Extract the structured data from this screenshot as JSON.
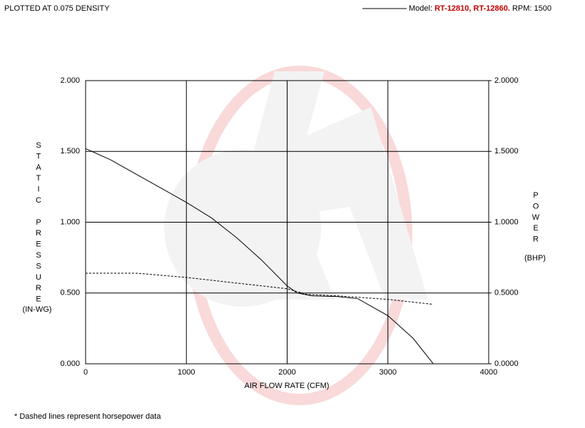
{
  "chart_data": {
    "type": "line",
    "note_top": "PLOTTED AT 0.075 DENSITY",
    "legend": {
      "label": "Model:",
      "models": "RT-12810, RT-12860.",
      "rpm": "RPM: 1500"
    },
    "xlabel": "AIR FLOW RATE (CFM)",
    "ylabel": "STATIC PRESSURE",
    "yunit": "(IN-WG)",
    "y2label": "POWER",
    "y2unit": "(BHP)",
    "footnote": "* Dashed lines represent horsepower data",
    "xlim": [
      0,
      4000
    ],
    "xticks": [
      0,
      1000,
      2000,
      3000,
      4000
    ],
    "ylim": [
      0,
      2
    ],
    "yticks": [
      {
        "value": 0,
        "label": "0.000"
      },
      {
        "value": 0.5,
        "label": "0.500"
      },
      {
        "value": 1,
        "label": "1.000"
      },
      {
        "value": 1.5,
        "label": "1.500"
      },
      {
        "value": 2,
        "label": "2.000"
      }
    ],
    "y2lim": [
      0,
      2
    ],
    "y2ticks": [
      {
        "value": 0,
        "label": "0.0000"
      },
      {
        "value": 0.5,
        "label": "0.5000"
      },
      {
        "value": 1,
        "label": "1.0000"
      },
      {
        "value": 1.5,
        "label": "1.5000"
      },
      {
        "value": 2,
        "label": "2.0000"
      }
    ],
    "grid": true,
    "series": [
      {
        "color": "#000000",
        "dashed": false,
        "axis": "y",
        "x": [
          0,
          250,
          500,
          750,
          1000,
          1250,
          1500,
          1750,
          2000,
          2100,
          2250,
          2500,
          2700,
          3000,
          3250,
          3450
        ],
        "values": [
          1.52,
          1.44,
          1.34,
          1.24,
          1.14,
          1.03,
          0.89,
          0.73,
          0.55,
          0.5,
          0.48,
          0.475,
          0.46,
          0.34,
          0.18,
          0
        ]
      },
      {
        "color": "#000000",
        "dashed": true,
        "axis": "y2",
        "x": [
          0,
          500,
          1000,
          1500,
          2000,
          2200,
          2500,
          3000,
          3450
        ],
        "values": [
          0.64,
          0.64,
          0.61,
          0.57,
          0.53,
          0.49,
          0.48,
          0.455,
          0.42
        ]
      }
    ]
  }
}
